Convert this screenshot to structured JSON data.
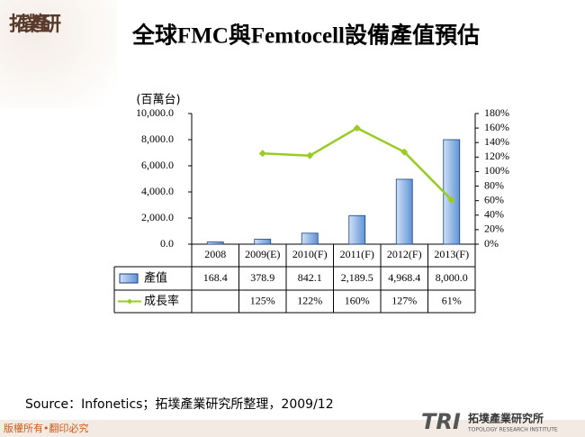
{
  "logo": "拓墣產研",
  "chart_data": {
    "type": "bar_line",
    "title": "全球FMC與Femtocell設備產值預估",
    "y_label": "(百萬台)",
    "categories": [
      "2008",
      "2009(E)",
      "2010(F)",
      "2011(F)",
      "2012(F)",
      "2013(F)"
    ],
    "series": [
      {
        "name": "產值",
        "type": "bar",
        "color": "#7aaae0",
        "values": [
          168.4,
          378.9,
          842.1,
          2189.5,
          4968.4,
          8000.0
        ],
        "value_labels": [
          "168.4",
          "378.9",
          "842.1",
          "2,189.5",
          "4,968.4",
          "8,000.0"
        ]
      },
      {
        "name": "成長率",
        "type": "line",
        "axis": "y2",
        "color": "#99cc22",
        "values": [
          null,
          125,
          122,
          160,
          127,
          61
        ],
        "value_labels": [
          null,
          "125%",
          "122%",
          "160%",
          "127%",
          "61%"
        ]
      }
    ],
    "ylim": [
      0,
      10000
    ],
    "yticks": [
      {
        "value": 0,
        "label": "0.0"
      },
      {
        "value": 2000,
        "label": "2,000.0"
      },
      {
        "value": 4000,
        "label": "4,000.0"
      },
      {
        "value": 6000,
        "label": "6,000.0"
      },
      {
        "value": 8000,
        "label": "8,000.0"
      },
      {
        "value": 10000,
        "label": "10,000.0"
      }
    ],
    "y2lim": [
      0,
      180
    ],
    "y2ticks": [
      {
        "value": 0,
        "label": "0%"
      },
      {
        "value": 20,
        "label": "20%"
      },
      {
        "value": 40,
        "label": "40%"
      },
      {
        "value": 60,
        "label": "60%"
      },
      {
        "value": 80,
        "label": "80%"
      },
      {
        "value": 100,
        "label": "100%"
      },
      {
        "value": 120,
        "label": "120%"
      },
      {
        "value": 140,
        "label": "140%"
      },
      {
        "value": 160,
        "label": "160%"
      },
      {
        "value": 180,
        "label": "180%"
      }
    ]
  },
  "source": "Source：Infonetics；拓墣產業研究所整理，2009/12",
  "copyright": "版權所有•翻印必究",
  "footer_logo": {
    "abbr": "TRI",
    "name": "拓墣產業研究所",
    "english": "TOPOLOGY RESEARCH INSTITUTE"
  }
}
